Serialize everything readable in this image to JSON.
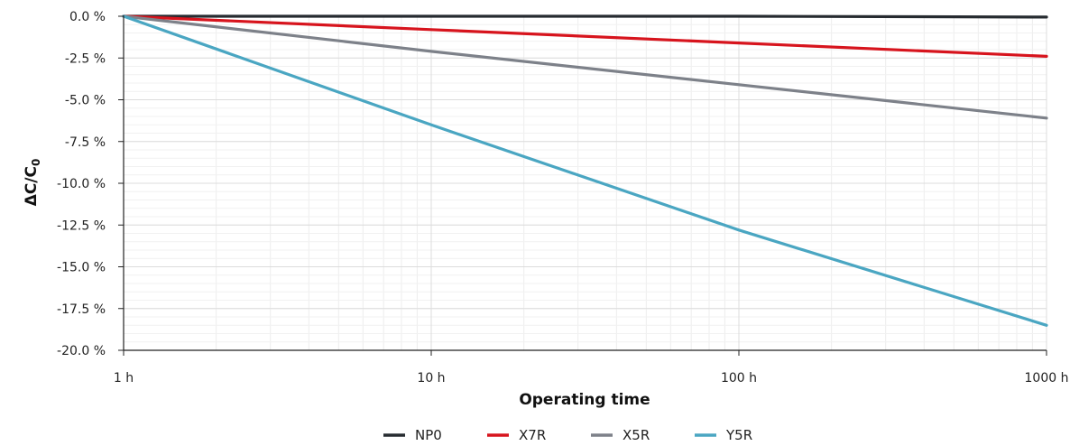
{
  "chart_data": {
    "type": "line",
    "x_scale": "log",
    "xlabel": "Operating time",
    "ylabel": "ΔC/C",
    "ylabel_subscript": "0",
    "xlim": [
      1,
      1000
    ],
    "ylim": [
      -20.0,
      0.0
    ],
    "x_ticks": [
      {
        "value": 1,
        "label": "1 h"
      },
      {
        "value": 10,
        "label": "10 h"
      },
      {
        "value": 100,
        "label": "100 h"
      },
      {
        "value": 1000,
        "label": "1000 h"
      }
    ],
    "y_ticks": [
      {
        "value": 0.0,
        "label": "0.0 %"
      },
      {
        "value": -2.5,
        "label": "-2.5 %"
      },
      {
        "value": -5.0,
        "label": "-5.0 %"
      },
      {
        "value": -7.5,
        "label": "-7.5 %"
      },
      {
        "value": -10.0,
        "label": "-10.0 %"
      },
      {
        "value": -12.5,
        "label": "-12.5 %"
      },
      {
        "value": -15.0,
        "label": "-15.0 %"
      },
      {
        "value": -17.5,
        "label": "-17.5 %"
      },
      {
        "value": -20.0,
        "label": "-20.0 %"
      }
    ],
    "grid": true,
    "legend_position": "bottom-center",
    "x": [
      1,
      10,
      100,
      1000
    ],
    "series": [
      {
        "name": "NP0",
        "color": "#262b30",
        "values": [
          0.0,
          0.0,
          0.0,
          -0.05
        ]
      },
      {
        "name": "X7R",
        "color": "#d7141d",
        "values": [
          0.0,
          -0.8,
          -1.6,
          -2.4
        ]
      },
      {
        "name": "X5R",
        "color": "#7d8189",
        "values": [
          0.0,
          -2.1,
          -4.1,
          -6.1
        ]
      },
      {
        "name": "Y5R",
        "color": "#4aa6c2",
        "values": [
          0.0,
          -6.5,
          -12.8,
          -18.5
        ]
      }
    ]
  }
}
